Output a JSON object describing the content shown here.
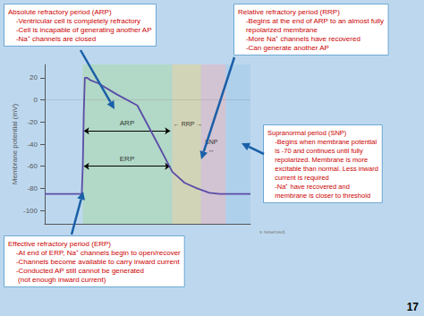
{
  "chart_data": {
    "type": "line",
    "background_color": "#bdd8ee",
    "ylabel": "Membrane potential (mV)",
    "xlim": [
      0,
      10
    ],
    "ylim": [
      -112,
      32
    ],
    "yticks": [
      20,
      0,
      -20,
      -40,
      -60,
      -80,
      -100
    ],
    "grid": false,
    "tick_labels": "y",
    "x": [
      0.0,
      1.8,
      1.85,
      1.9,
      1.95,
      2.05,
      2.2,
      2.6,
      3.5,
      4.5,
      5.5,
      6.2,
      6.8,
      7.4,
      8.0,
      8.5,
      9.0,
      10.0
    ],
    "values": [
      -85,
      -85,
      -60,
      -10,
      20,
      20,
      18,
      15,
      5,
      -5,
      -40,
      -65,
      -75,
      -80,
      -84,
      -85,
      -85,
      -85
    ],
    "color": "#5b4ca8",
    "reference_line": 0,
    "regions": [
      {
        "x0": 1.85,
        "x1": 6.2,
        "color": "#a8d8a0"
      },
      {
        "x0": 6.2,
        "x1": 7.6,
        "color": "#e8d080"
      },
      {
        "x0": 7.6,
        "x1": 8.8,
        "color": "#e8b0b8"
      },
      {
        "x0": 8.8,
        "x1": 10.0,
        "color": "#a0c8e8"
      }
    ],
    "arrows": [
      {
        "x1": 1.9,
        "x2": 6.1,
        "y": -28,
        "label": "ARP",
        "label_x": 4.0,
        "label_y": -25
      },
      {
        "x1": 1.9,
        "x2": 6.1,
        "y": -60,
        "label": "ERP",
        "label_x": 4.0,
        "label_y": -57
      }
    ],
    "labels": [
      {
        "x": 6.25,
        "y": -22,
        "text": "← RRP →",
        "align": "left"
      },
      {
        "x": 8.1,
        "y": -42,
        "text": "SNP\n↔",
        "align": "center"
      }
    ],
    "text_boxes": [
      {
        "title": "Absolute refractory period (ARP)",
        "lines": [
          "    -Ventricular cell is completely refractory",
          "    -Cell is incapable of generating another AP",
          "    -Na⁺ channels are closed"
        ]
      },
      {
        "title": "Relative refractory period (RRP)",
        "lines": [
          "    -Begins at the end of ARP to an almost fully",
          "    repolarized membrane",
          "    -More Na⁺ channels have recovered",
          "    -Can generate another AP"
        ]
      },
      {
        "title": "Supranormal period (SNP)",
        "lines": [
          "    -Begins when membrane potential",
          "    is -70 and continues until fully",
          "    repolarized. Membrane is more",
          "    excitable than normal. Less inward",
          "    current is required",
          "    -Na⁺ have recovered and",
          "    membrane is closer to threshold"
        ]
      },
      {
        "title": "Effective refractory period (ERP)",
        "lines": [
          "    -At end of ERP, Na⁺ channels begin to open/recover",
          "    -Channels become available to carry inward current",
          "    -Conducted AP still cannot be generated",
          "     (not enough inward current)"
        ]
      }
    ],
    "text_color": "#cc0000",
    "box_color": "white",
    "box_edge": "#5599cc",
    "pointer_color": "#1a5fa8",
    "page_number": "17",
    "footnote": "s reserved."
  }
}
